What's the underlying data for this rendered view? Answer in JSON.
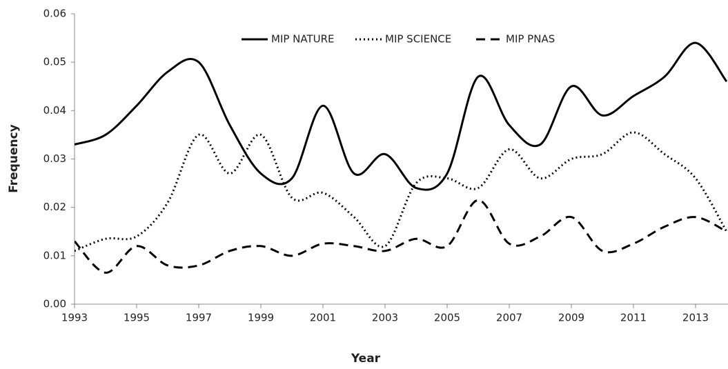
{
  "chart_data": {
    "type": "line",
    "x_label": "Year",
    "y_label": "Frequency",
    "x": [
      1993,
      1994,
      1995,
      1996,
      1997,
      1998,
      1999,
      2000,
      2001,
      2002,
      2003,
      2004,
      2005,
      2006,
      2007,
      2008,
      2009,
      2010,
      2011,
      2012,
      2013,
      2014
    ],
    "series": [
      {
        "name": "MIP NATURE",
        "color": "#000000",
        "dash": "solid",
        "values": [
          0.033,
          0.035,
          0.041,
          0.048,
          0.05,
          0.037,
          0.027,
          0.026,
          0.041,
          0.027,
          0.031,
          0.024,
          0.027,
          0.047,
          0.037,
          0.033,
          0.045,
          0.039,
          0.043,
          0.047,
          0.054,
          0.046
        ]
      },
      {
        "name": "MIP SCIENCE",
        "color": "#000000",
        "dash": "dotted",
        "values": [
          0.011,
          0.0135,
          0.014,
          0.021,
          0.035,
          0.027,
          0.035,
          0.022,
          0.023,
          0.018,
          0.012,
          0.025,
          0.026,
          0.024,
          0.032,
          0.026,
          0.03,
          0.031,
          0.0355,
          0.031,
          0.026,
          0.015
        ]
      },
      {
        "name": "MIP PNAS",
        "color": "#000000",
        "dash": "dashed",
        "values": [
          0.013,
          0.0065,
          0.012,
          0.008,
          0.008,
          0.011,
          0.012,
          0.01,
          0.0125,
          0.012,
          0.011,
          0.0135,
          0.012,
          0.0215,
          0.0125,
          0.014,
          0.018,
          0.011,
          0.0125,
          0.016,
          0.018,
          0.015
        ]
      }
    ],
    "xlim": [
      1993,
      2014
    ],
    "xticks": [
      1993,
      1995,
      1997,
      1999,
      2001,
      2003,
      2005,
      2007,
      2009,
      2011,
      2013
    ],
    "ylim": [
      0,
      0.06
    ],
    "yticks": [
      {
        "value": 0,
        "label": "0.00"
      },
      0.01,
      0.02,
      0.03,
      0.04,
      0.05,
      0.06
    ],
    "legend": "top",
    "grid": false
  }
}
